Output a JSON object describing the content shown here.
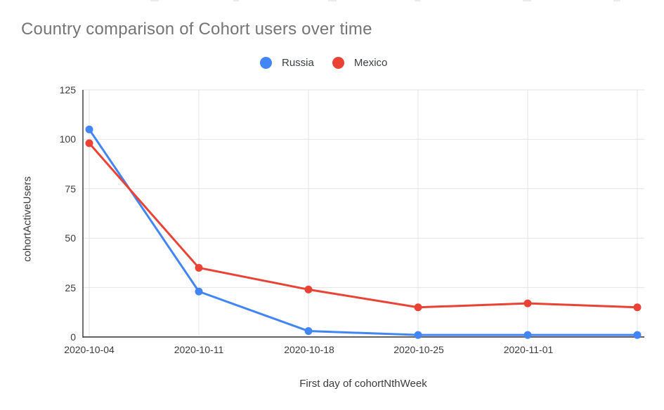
{
  "title": {
    "text": "Country comparison of Cohort users over time",
    "color": "#757575"
  },
  "legend": {
    "items": [
      {
        "label": "Russia",
        "color": "#4285F4"
      },
      {
        "label": "Mexico",
        "color": "#EA4335"
      }
    ]
  },
  "axes": {
    "x_title": "First day of cohortNthWeek",
    "y_title": "cohortActiveUsers",
    "y_tick_labels_top_to_bottom": [
      "125",
      "100",
      "75",
      "50",
      "25",
      "0"
    ],
    "x_tick_labels": [
      "2020-10-04",
      "2020-10-11",
      "2020-10-18",
      "2020-10-25",
      "2020-11-01"
    ]
  },
  "chart_data": {
    "type": "line",
    "title": "Country comparison of Cohort users over time",
    "xlabel": "First day of cohortNthWeek",
    "ylabel": "cohortActiveUsers",
    "categories": [
      "2020-10-04",
      "2020-10-11",
      "2020-10-18",
      "2020-10-25",
      "2020-11-01",
      ""
    ],
    "series": [
      {
        "name": "Russia",
        "color": "#4285F4",
        "values": [
          105,
          23,
          3,
          1,
          1,
          1
        ]
      },
      {
        "name": "Mexico",
        "color": "#EA4335",
        "values": [
          98,
          35,
          24,
          15,
          17,
          15
        ]
      }
    ],
    "ylim": [
      0,
      125
    ],
    "ytick_step": 25,
    "grid": true,
    "legend_position": "top",
    "marker": "circle",
    "colors": {
      "gridline": "#e3e3e3",
      "x_axis_line": "#636363",
      "y_axis_line": "#424242"
    }
  }
}
